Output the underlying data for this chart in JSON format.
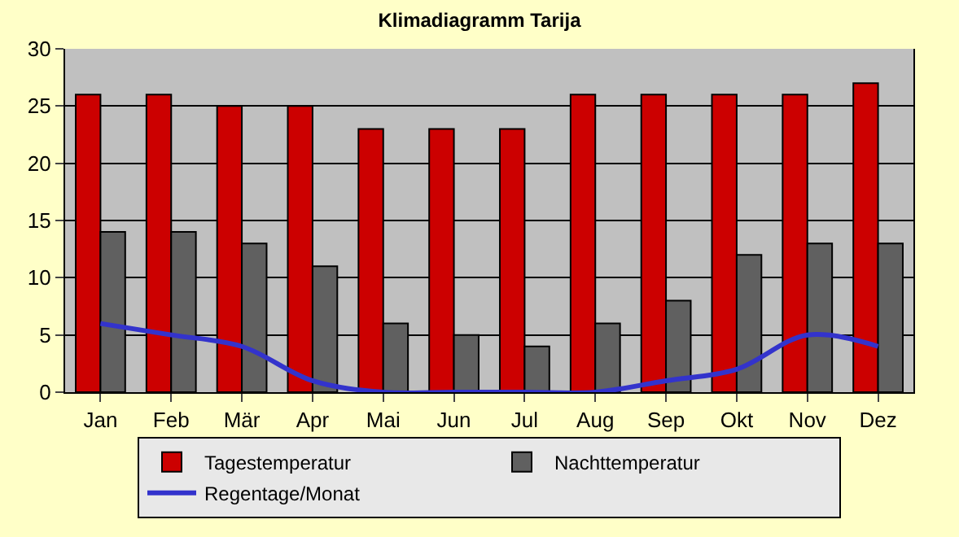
{
  "chart_data": {
    "type": "bar",
    "title": "Klimadiagramm Tarija",
    "categories": [
      "Jan",
      "Feb",
      "Mär",
      "Apr",
      "Mai",
      "Jun",
      "Jul",
      "Aug",
      "Sep",
      "Okt",
      "Nov",
      "Dez"
    ],
    "series": [
      {
        "name": "Tagestemperatur",
        "color": "#cc0000",
        "values": [
          26,
          26,
          25,
          25,
          23,
          23,
          23,
          26,
          26,
          26,
          26,
          27
        ]
      },
      {
        "name": "Nachttemperatur",
        "color": "#606060",
        "values": [
          14,
          14,
          13,
          11,
          6,
          5,
          4,
          6,
          8,
          12,
          13,
          13
        ]
      },
      {
        "name": "Regentage/Monat",
        "type": "line",
        "color": "#3333cc",
        "values": [
          6,
          5,
          4,
          1,
          0,
          0,
          0,
          0,
          1,
          2,
          5,
          4
        ]
      }
    ],
    "ylim": [
      0,
      30
    ],
    "yticks": [
      0,
      5,
      10,
      15,
      20,
      25,
      30
    ],
    "grid": "y",
    "legend": "bottom",
    "marker": "none",
    "line_style": "solid"
  }
}
